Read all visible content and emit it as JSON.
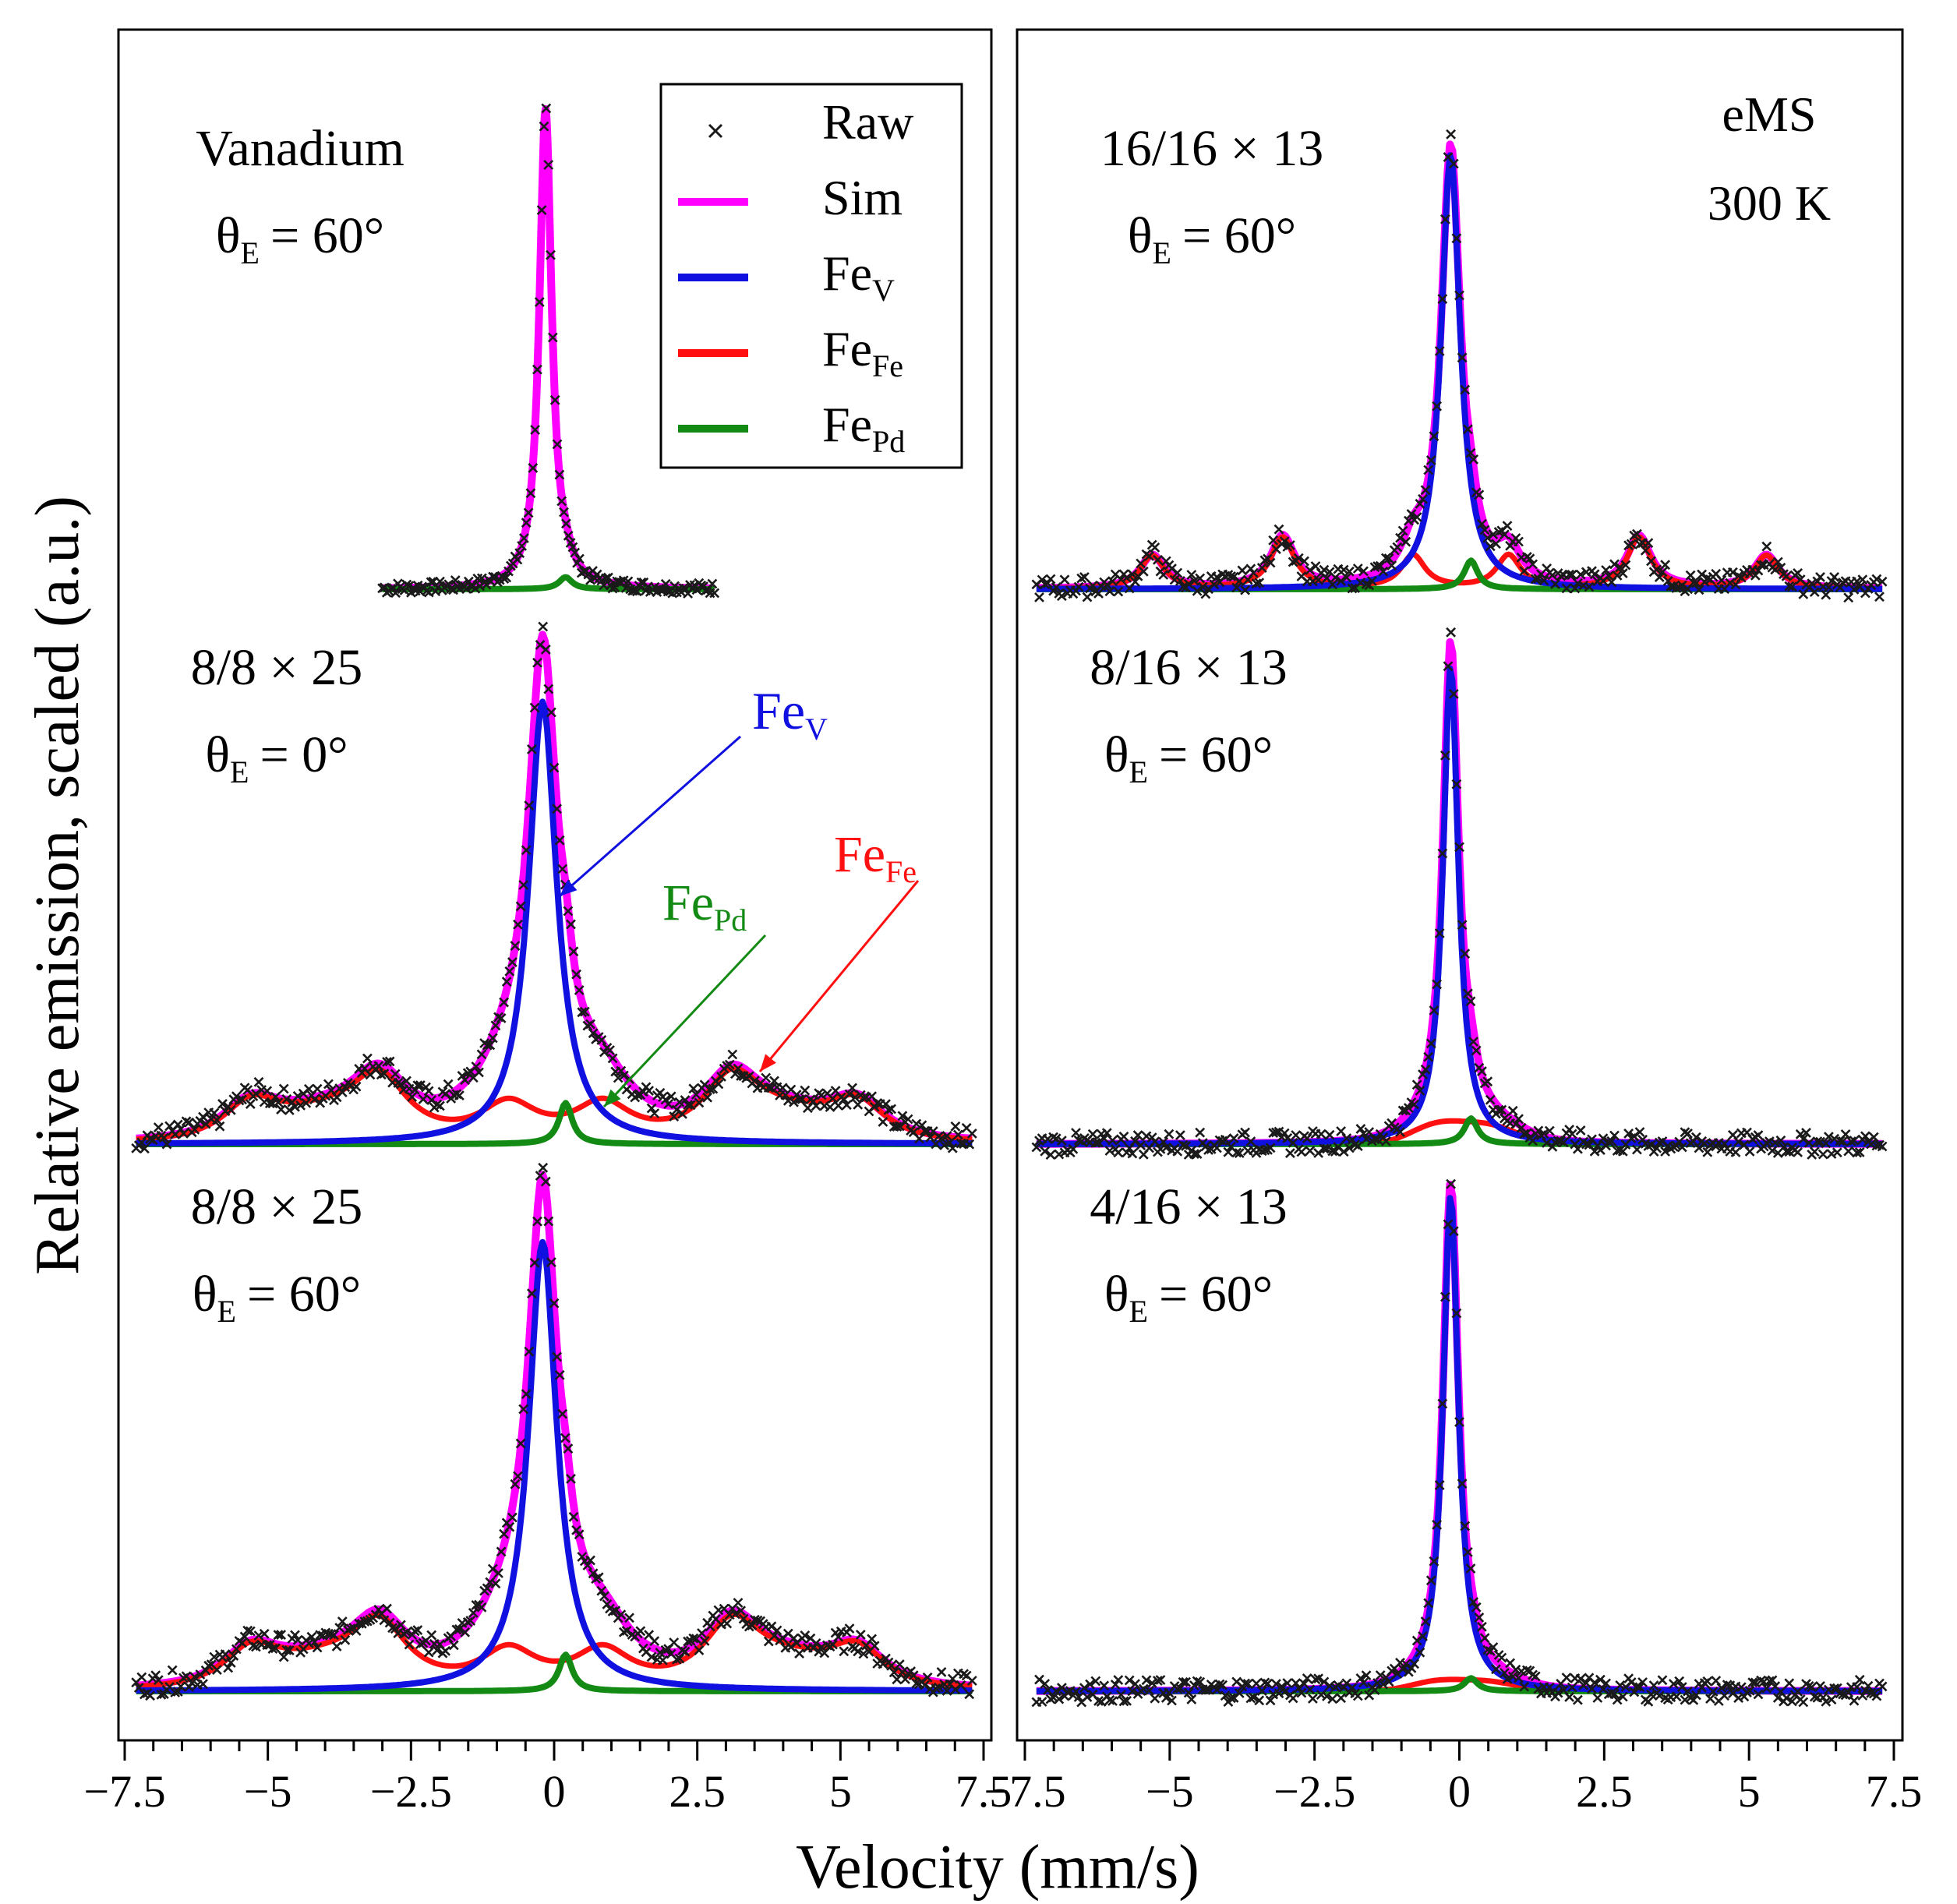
{
  "chart_data": {
    "type": "line",
    "xlabel": "Velocity (mm/s)",
    "ylabel": "Relative emission, scaled (a.u.)",
    "xlim": [
      -7.5,
      7.5
    ],
    "x_ticks": [
      "−7.5",
      "−5",
      "−2.5",
      "0",
      "2.5",
      "5",
      "7.5"
    ],
    "x_tick_values": [
      -7.5,
      -5,
      -2.5,
      0,
      2.5,
      5,
      7.5
    ],
    "legend": {
      "position": "top-right of left column",
      "entries": [
        {
          "key": "raw",
          "label": "Raw",
          "sub": "",
          "marker": "x",
          "color": "#1a1a1a"
        },
        {
          "key": "sim",
          "label": "Sim",
          "sub": "",
          "marker": "line",
          "color": "#ff00ff"
        },
        {
          "key": "fev",
          "label": "Fe",
          "sub": "V",
          "marker": "line",
          "color": "#1010e0"
        },
        {
          "key": "fefe",
          "label": "Fe",
          "sub": "Fe",
          "marker": "line",
          "color": "#ff1010"
        },
        {
          "key": "fepd",
          "label": "Fe",
          "sub": "Pd",
          "marker": "line",
          "color": "#138a13"
        }
      ]
    },
    "annotation": {
      "line1": "eMS",
      "line2": "300 K"
    },
    "panels": [
      {
        "id": "vanadium",
        "column": "left",
        "row": 0,
        "label": "Vanadium",
        "angle_sym": "θ",
        "angle_sub": "E",
        "angle_val": "= 60°",
        "x_range": [
          -3,
          2.8
        ],
        "peak": 1.0,
        "fev": {
          "center": -0.15,
          "hwhm": 0.13,
          "amp": 0.0
        },
        "fefe": {
          "amp": 0.0
        },
        "fepd": {
          "amp": 0.025
        }
      },
      {
        "id": "l2",
        "column": "left",
        "row": 1,
        "label": "8/8 × 25",
        "angle_sym": "θ",
        "angle_sub": "E",
        "angle_val": "= 0°",
        "x_range": [
          -7.3,
          7.3
        ],
        "peak": 1.0,
        "fev": {
          "center": -0.2,
          "hwhm": 0.3,
          "amp": 0.86
        },
        "fefe": {
          "amp": 0.12
        },
        "fepd": {
          "amp": 0.08
        }
      },
      {
        "id": "l3",
        "column": "left",
        "row": 2,
        "label": "8/8 × 25",
        "angle_sym": "θ",
        "angle_sub": "E",
        "angle_val": "= 60°",
        "x_range": [
          -7.3,
          7.3
        ],
        "peak": 1.0,
        "fev": {
          "center": -0.2,
          "hwhm": 0.3,
          "amp": 0.86
        },
        "fefe": {
          "amp": 0.12
        },
        "fepd": {
          "amp": 0.07
        }
      },
      {
        "id": "r1",
        "column": "right",
        "row": 0,
        "label": "16/16 × 13",
        "angle_sym": "θ",
        "angle_sub": "E",
        "angle_val": "= 60°",
        "x_range": [
          -7.3,
          7.3
        ],
        "peak": 1.0,
        "fev": {
          "center": -0.15,
          "hwhm": 0.2,
          "amp": 0.91
        },
        "fefe": {
          "amp": 0.12
        },
        "fepd": {
          "amp": 0.06
        }
      },
      {
        "id": "r2",
        "column": "right",
        "row": 1,
        "label": "8/16 × 13",
        "angle_sym": "θ",
        "angle_sub": "E",
        "angle_val": "= 60°",
        "x_range": [
          -7.3,
          7.3
        ],
        "peak": 1.0,
        "fev": {
          "center": -0.15,
          "hwhm": 0.16,
          "amp": 0.93
        },
        "fefe": {
          "amp": 0.05
        },
        "fepd": {
          "amp": 0.05
        }
      },
      {
        "id": "r3",
        "column": "right",
        "row": 2,
        "label": "4/16 × 13",
        "angle_sym": "θ",
        "angle_sub": "E",
        "angle_val": "= 60°",
        "x_range": [
          -7.3,
          7.3
        ],
        "peak": 1.0,
        "fev": {
          "center": -0.15,
          "hwhm": 0.16,
          "amp": 0.95
        },
        "fefe": {
          "amp": 0.025
        },
        "fepd": {
          "amp": 0.025
        }
      }
    ],
    "callouts": [
      {
        "label": "Fe",
        "sub": "V",
        "series": "fev",
        "color": "#1010e0",
        "panel": "l2"
      },
      {
        "label": "Fe",
        "sub": "Fe",
        "series": "fefe",
        "color": "#ff1010",
        "panel": "l2"
      },
      {
        "label": "Fe",
        "sub": "Pd",
        "series": "fepd",
        "color": "#138a13",
        "panel": "l2"
      }
    ]
  }
}
